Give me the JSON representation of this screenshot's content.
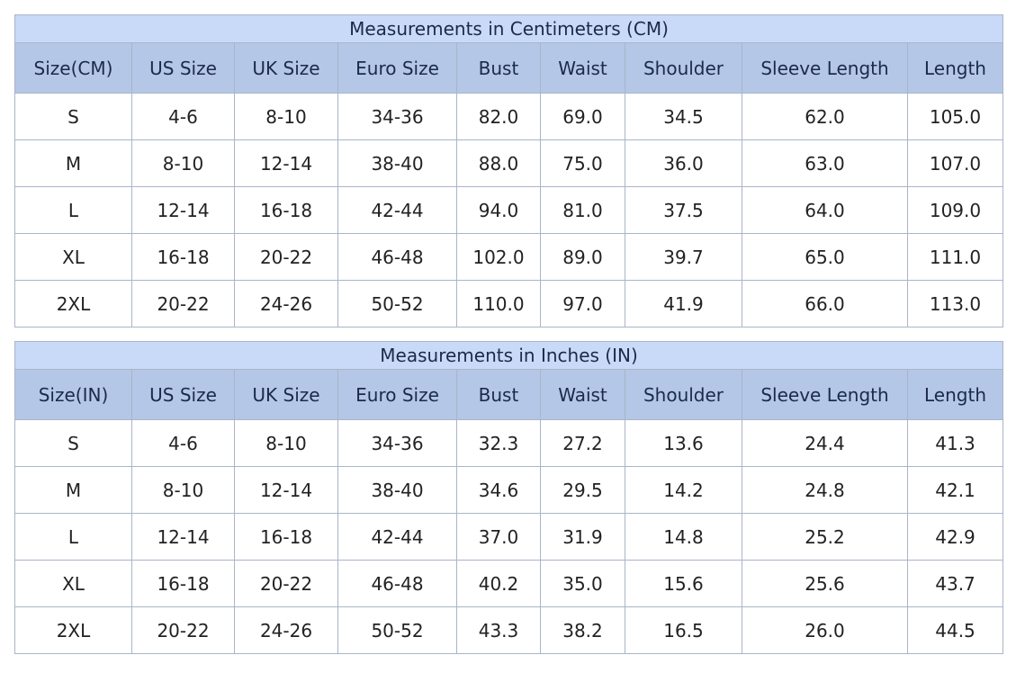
{
  "tables": [
    {
      "title": "Measurements in Centimeters (CM)",
      "header": [
        "Size(CM)",
        "US Size",
        "UK Size",
        "Euro Size",
        "Bust",
        "Waist",
        "Shoulder",
        "Sleeve Length",
        "Length"
      ],
      "rows": [
        [
          "S",
          "4-6",
          "8-10",
          "34-36",
          "82.0",
          "69.0",
          "34.5",
          "62.0",
          "105.0"
        ],
        [
          "M",
          "8-10",
          "12-14",
          "38-40",
          "88.0",
          "75.0",
          "36.0",
          "63.0",
          "107.0"
        ],
        [
          "L",
          "12-14",
          "16-18",
          "42-44",
          "94.0",
          "81.0",
          "37.5",
          "64.0",
          "109.0"
        ],
        [
          "XL",
          "16-18",
          "20-22",
          "46-48",
          "102.0",
          "89.0",
          "39.7",
          "65.0",
          "111.0"
        ],
        [
          "2XL",
          "20-22",
          "24-26",
          "50-52",
          "110.0",
          "97.0",
          "41.9",
          "66.0",
          "113.0"
        ]
      ]
    },
    {
      "title": "Measurements in Inches (IN)",
      "header": [
        "Size(IN)",
        "US Size",
        "UK Size",
        "Euro Size",
        "Bust",
        "Waist",
        "Shoulder",
        "Sleeve Length",
        "Length"
      ],
      "rows": [
        [
          "S",
          "4-6",
          "8-10",
          "34-36",
          "32.3",
          "27.2",
          "13.6",
          "24.4",
          "41.3"
        ],
        [
          "M",
          "8-10",
          "12-14",
          "38-40",
          "34.6",
          "29.5",
          "14.2",
          "24.8",
          "42.1"
        ],
        [
          "L",
          "12-14",
          "16-18",
          "42-44",
          "37.0",
          "31.9",
          "14.8",
          "25.2",
          "42.9"
        ],
        [
          "XL",
          "16-18",
          "20-22",
          "46-48",
          "40.2",
          "35.0",
          "15.6",
          "25.6",
          "43.7"
        ],
        [
          "2XL",
          "20-22",
          "24-26",
          "50-52",
          "43.3",
          "38.2",
          "16.5",
          "26.0",
          "44.5"
        ]
      ]
    }
  ]
}
